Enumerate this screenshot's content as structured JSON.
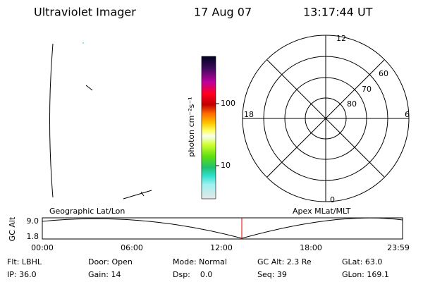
{
  "header": {
    "title": "Ultraviolet Imager",
    "date": "17 Aug 07",
    "time": "13:17:44 UT"
  },
  "colorbar": {
    "label": "photon cm⁻²s⁻¹",
    "ticks": [
      "100",
      "10"
    ]
  },
  "polar": {
    "mlt_labels": [
      "12",
      "18",
      "6",
      "0"
    ],
    "lat_labels": [
      "60",
      "70",
      "80"
    ]
  },
  "altitude_panel": {
    "left_label": "Geographic Lat/Lon",
    "right_label": "Apex MLat/MLT",
    "axis_label": "GC Alt",
    "ticks": [
      "9.0",
      "1.8"
    ],
    "time_labels": [
      "00:00",
      "06:00",
      "12:00",
      "18:00",
      "23:59"
    ]
  },
  "status": {
    "rows": [
      [
        "Flt: LBHL",
        "Door: Open",
        "Mode: Normal",
        "GC Alt: 2.3 Re",
        "GLat: 63.0"
      ],
      [
        "IP: 36.0",
        "Gain: 14",
        "Dsp:    0.0",
        "Seq: 39",
        "GLon: 169.1"
      ]
    ]
  }
}
